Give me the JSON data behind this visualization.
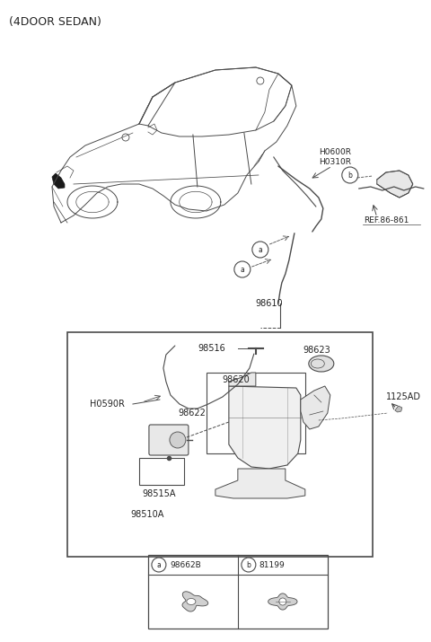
{
  "title": "(4DOOR SEDAN)",
  "bg_color": "#ffffff",
  "line_color": "#4a4a4a",
  "text_color": "#222222",
  "title_fontsize": 9,
  "label_fontsize": 7,
  "small_fontsize": 6,
  "figsize": [
    4.8,
    7.15
  ],
  "dpi": 100,
  "labels": {
    "H0600R_H0310R": "H0600R\nH0310R",
    "REF_86_861": "REF.86-861",
    "98610": "98610",
    "98516": "98516",
    "H0590R": "H0590R",
    "98620": "98620",
    "98623": "98623",
    "1125AD": "1125AD",
    "98622": "98622",
    "98515A": "98515A",
    "98510A": "98510A",
    "part_a": "98662B",
    "part_b": "81199"
  }
}
